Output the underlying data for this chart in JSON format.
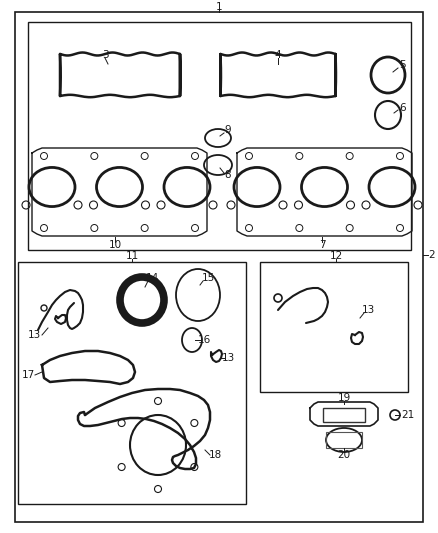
{
  "bg_color": "#ffffff",
  "line_color": "#1a1a1a",
  "fig_w": 4.38,
  "fig_h": 5.33,
  "dpi": 100
}
